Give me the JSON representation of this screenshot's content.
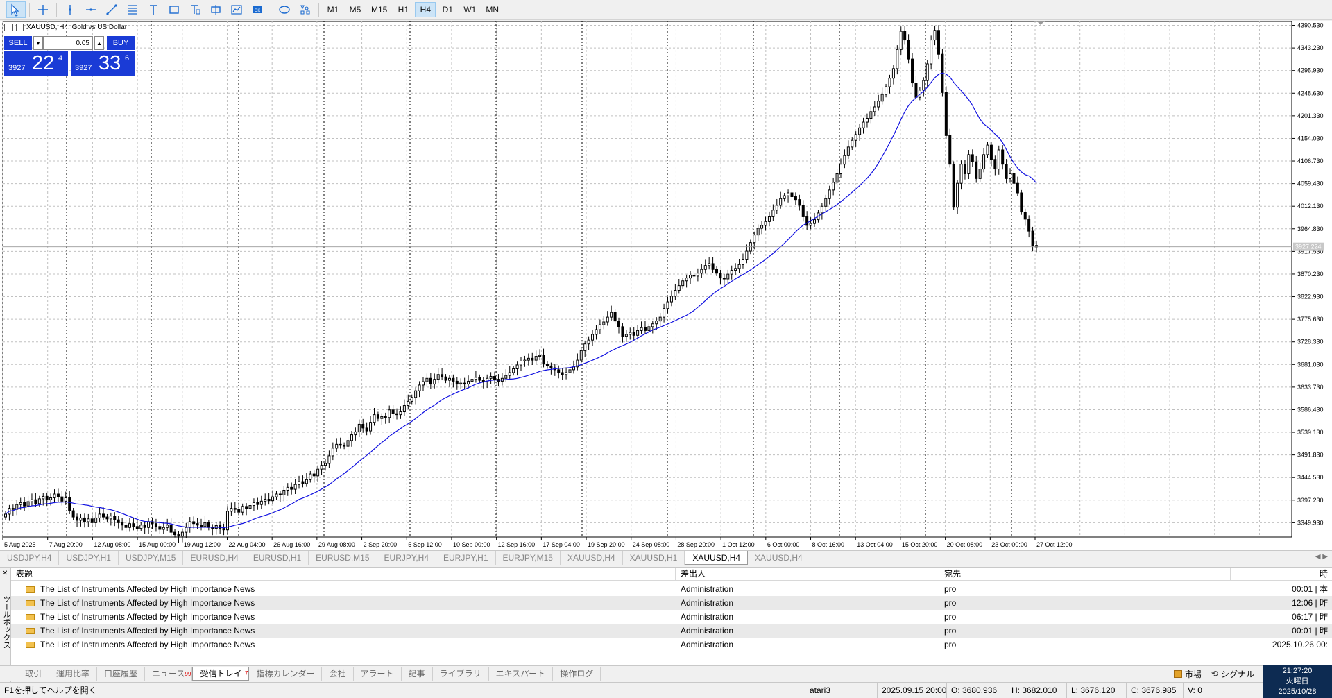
{
  "toolbar": {
    "tools": [
      {
        "name": "cursor-tool-button",
        "icon": "cursor-icon",
        "active": true
      },
      {
        "name": "crosshair-tool-button",
        "icon": "crosshair-icon"
      },
      {
        "name": "vertical-line-tool-button",
        "icon": "vertical-line-icon"
      },
      {
        "name": "horizontal-line-tool-button",
        "icon": "horizontal-line-icon"
      },
      {
        "name": "trendline-tool-button",
        "icon": "trendline-icon"
      },
      {
        "name": "fibonacci-tool-button",
        "icon": "fibonacci-icon"
      },
      {
        "name": "text-tool-button",
        "icon": "text-icon"
      },
      {
        "name": "rectangle-tool-button",
        "icon": "rectangle-icon"
      },
      {
        "name": "text-label-tool-button",
        "icon": "text-label-icon"
      },
      {
        "name": "event-tool-button",
        "icon": "event-icon"
      },
      {
        "name": "chart-tool-button",
        "icon": "chart-icon"
      },
      {
        "name": "ok-button",
        "icon": "ok-icon"
      },
      {
        "name": "ellipse-tool-button",
        "icon": "ellipse-icon"
      },
      {
        "name": "shapes-menu-button",
        "icon": "shapes-icon"
      }
    ],
    "timeframes": [
      "M1",
      "M5",
      "M15",
      "H1",
      "H4",
      "D1",
      "W1",
      "MN"
    ],
    "active_timeframe": "H4"
  },
  "chart": {
    "header_title": "XAUUSD, H4:  Gold vs US Dollar",
    "trade": {
      "sell_label": "SELL",
      "buy_label": "BUY",
      "lot": "0.05",
      "sell_prefix": "3927",
      "sell_big": "22",
      "sell_sup": "4",
      "buy_prefix": "3927",
      "buy_big": "33",
      "buy_sup": "6"
    },
    "current_price_label": "3927.224"
  },
  "chart_data": {
    "type": "candlestick",
    "symbol": "XAUUSD",
    "timeframe": "H4",
    "y_ticks": [
      "4390.530",
      "4343.230",
      "4295.930",
      "4248.630",
      "4201.330",
      "4154.030",
      "4106.730",
      "4059.430",
      "4012.130",
      "3964.830",
      "3917.530",
      "3870.230",
      "3822.930",
      "3775.630",
      "3728.330",
      "3681.030",
      "3633.730",
      "3586.430",
      "3539.130",
      "3491.830",
      "3444.530",
      "3397.230",
      "3349.930"
    ],
    "ylim": [
      3320,
      4400
    ],
    "x_ticks": [
      "5 Aug 2025",
      "7 Aug 20:00",
      "12 Aug 08:00",
      "15 Aug 00:00",
      "19 Aug 12:00",
      "22 Aug 04:00",
      "26 Aug 16:00",
      "29 Aug 08:00",
      "2 Sep 20:00",
      "5 Sep 12:00",
      "10 Sep 00:00",
      "12 Sep 16:00",
      "17 Sep 04:00",
      "19 Sep 20:00",
      "24 Sep 08:00",
      "28 Sep 20:00",
      "1 Oct 12:00",
      "6 Oct 00:00",
      "8 Oct 16:00",
      "13 Oct 04:00",
      "15 Oct 20:00",
      "20 Oct 08:00",
      "23 Oct 00:00",
      "27 Oct 12:00"
    ],
    "closes": [
      3368,
      3380,
      3378,
      3388,
      3392,
      3385,
      3394,
      3398,
      3390,
      3400,
      3405,
      3398,
      3402,
      3410,
      3404,
      3395,
      3402,
      3375,
      3362,
      3355,
      3360,
      3352,
      3358,
      3350,
      3360,
      3368,
      3362,
      3358,
      3364,
      3356,
      3350,
      3345,
      3340,
      3348,
      3342,
      3338,
      3345,
      3340,
      3352,
      3348,
      3342,
      3336,
      3340,
      3345,
      3330,
      3325,
      3322,
      3330,
      3340,
      3352,
      3348,
      3345,
      3342,
      3350,
      3340,
      3338,
      3344,
      3338,
      3335,
      3374,
      3380,
      3378,
      3372,
      3384,
      3380,
      3386,
      3392,
      3388,
      3395,
      3399,
      3396,
      3404,
      3410,
      3408,
      3418,
      3424,
      3420,
      3430,
      3436,
      3432,
      3440,
      3452,
      3448,
      3462,
      3470,
      3474,
      3490,
      3506,
      3514,
      3512,
      3510,
      3522,
      3534,
      3540,
      3556,
      3548,
      3542,
      3560,
      3576,
      3568,
      3572,
      3570,
      3586,
      3578,
      3576,
      3582,
      3595,
      3604,
      3612,
      3626,
      3638,
      3645,
      3652,
      3640,
      3650,
      3660,
      3655,
      3648,
      3652,
      3646,
      3640,
      3642,
      3640,
      3646,
      3650,
      3654,
      3648,
      3645,
      3652,
      3656,
      3650,
      3646,
      3652,
      3658,
      3664,
      3672,
      3680,
      3688,
      3690,
      3694,
      3690,
      3698,
      3700,
      3682,
      3678,
      3674,
      3670,
      3664,
      3660,
      3664,
      3670,
      3676,
      3690,
      3710,
      3724,
      3732,
      3744,
      3754,
      3764,
      3770,
      3780,
      3790,
      3772,
      3760,
      3740,
      3744,
      3748,
      3742,
      3752,
      3758,
      3752,
      3760,
      3766,
      3772,
      3780,
      3798,
      3812,
      3824,
      3836,
      3846,
      3856,
      3862,
      3868,
      3866,
      3872,
      3880,
      3888,
      3892,
      3880,
      3872,
      3862,
      3860,
      3870,
      3878,
      3882,
      3890,
      3900,
      3918,
      3936,
      3952,
      3966,
      3972,
      3980,
      3990,
      4004,
      4014,
      4028,
      4034,
      4040,
      4032,
      4026,
      4014,
      3990,
      3972,
      3976,
      3984,
      3998,
      4012,
      4028,
      4046,
      4062,
      4080,
      4100,
      4118,
      4136,
      4150,
      4162,
      4176,
      4188,
      4196,
      4210,
      4220,
      4232,
      4246,
      4262,
      4280,
      4300,
      4340,
      4378,
      4360,
      4320,
      4270,
      4240,
      4255,
      4275,
      4310,
      4360,
      4380,
      4330,
      4250,
      4160,
      4100,
      4010,
      4060,
      4100,
      4080,
      4120,
      4105,
      4070,
      4090,
      4120,
      4140,
      4110,
      4090,
      4130,
      4100,
      4070,
      4080,
      4060,
      4040,
      4000,
      3985,
      3960,
      3930,
      3927
    ],
    "ma_period": 20,
    "grid": true
  },
  "chart_tabs": [
    "USDJPY,H4",
    "USDJPY,H1",
    "USDJPY,M15",
    "EURUSD,H4",
    "EURUSD,H1",
    "EURUSD,M15",
    "EURJPY,H4",
    "EURJPY,H1",
    "EURJPY,M15",
    "XAUUSD,H4",
    "XAUUSD,H1",
    "XAUUSD,H4",
    "XAUUSD,H4"
  ],
  "active_chart_tab": 11,
  "toolbox": {
    "side_label": "ツールボックス",
    "headers": [
      "表題",
      "差出人",
      "宛先",
      "時"
    ],
    "rows": [
      {
        "subject": "The List of Instruments Affected by High Importance News",
        "from": "Administration",
        "to": "pro",
        "time": "00:01 | 本"
      },
      {
        "subject": "The List of Instruments Affected by High Importance News",
        "from": "Administration",
        "to": "pro",
        "time": "12:06 | 昨"
      },
      {
        "subject": "The List of Instruments Affected by High Importance News",
        "from": "Administration",
        "to": "pro",
        "time": "06:17 | 昨"
      },
      {
        "subject": "The List of Instruments Affected by High Importance News",
        "from": "Administration",
        "to": "pro",
        "time": "00:01 | 昨"
      },
      {
        "subject": "The List of Instruments Affected by High Importance News",
        "from": "Administration",
        "to": "pro",
        "time": "2025.10.26 00:"
      }
    ],
    "tabs": [
      {
        "label": "取引"
      },
      {
        "label": "運用比率"
      },
      {
        "label": "口座履歴"
      },
      {
        "label": "ニュース",
        "badge": "99"
      },
      {
        "label": "受信トレイ",
        "badge": "7",
        "active": true
      },
      {
        "label": "指標カレンダー"
      },
      {
        "label": "会社"
      },
      {
        "label": "アラート"
      },
      {
        "label": "記事"
      },
      {
        "label": "ライブラリ"
      },
      {
        "label": "エキスパート"
      },
      {
        "label": "操作ログ"
      }
    ],
    "market_label": "市場",
    "signal_label": "シグナル"
  },
  "statusbar": {
    "help": "F1を押してヘルプを開く",
    "profile": "atari3",
    "datetime": "2025.09.15 20:00",
    "open": "O: 3680.936",
    "high": "H: 3682.010",
    "low": "L: 3676.120",
    "close": "C: 3676.985",
    "volume": "V: 0"
  },
  "clock": {
    "time": "21:27:20",
    "weekday": "火曜日",
    "date": "2025/10/28"
  },
  "colors": {
    "candle": "#000000",
    "ma_line": "#1010e0",
    "trade_panel": "#1a3bd6",
    "clock_bg": "#0d2b52"
  }
}
